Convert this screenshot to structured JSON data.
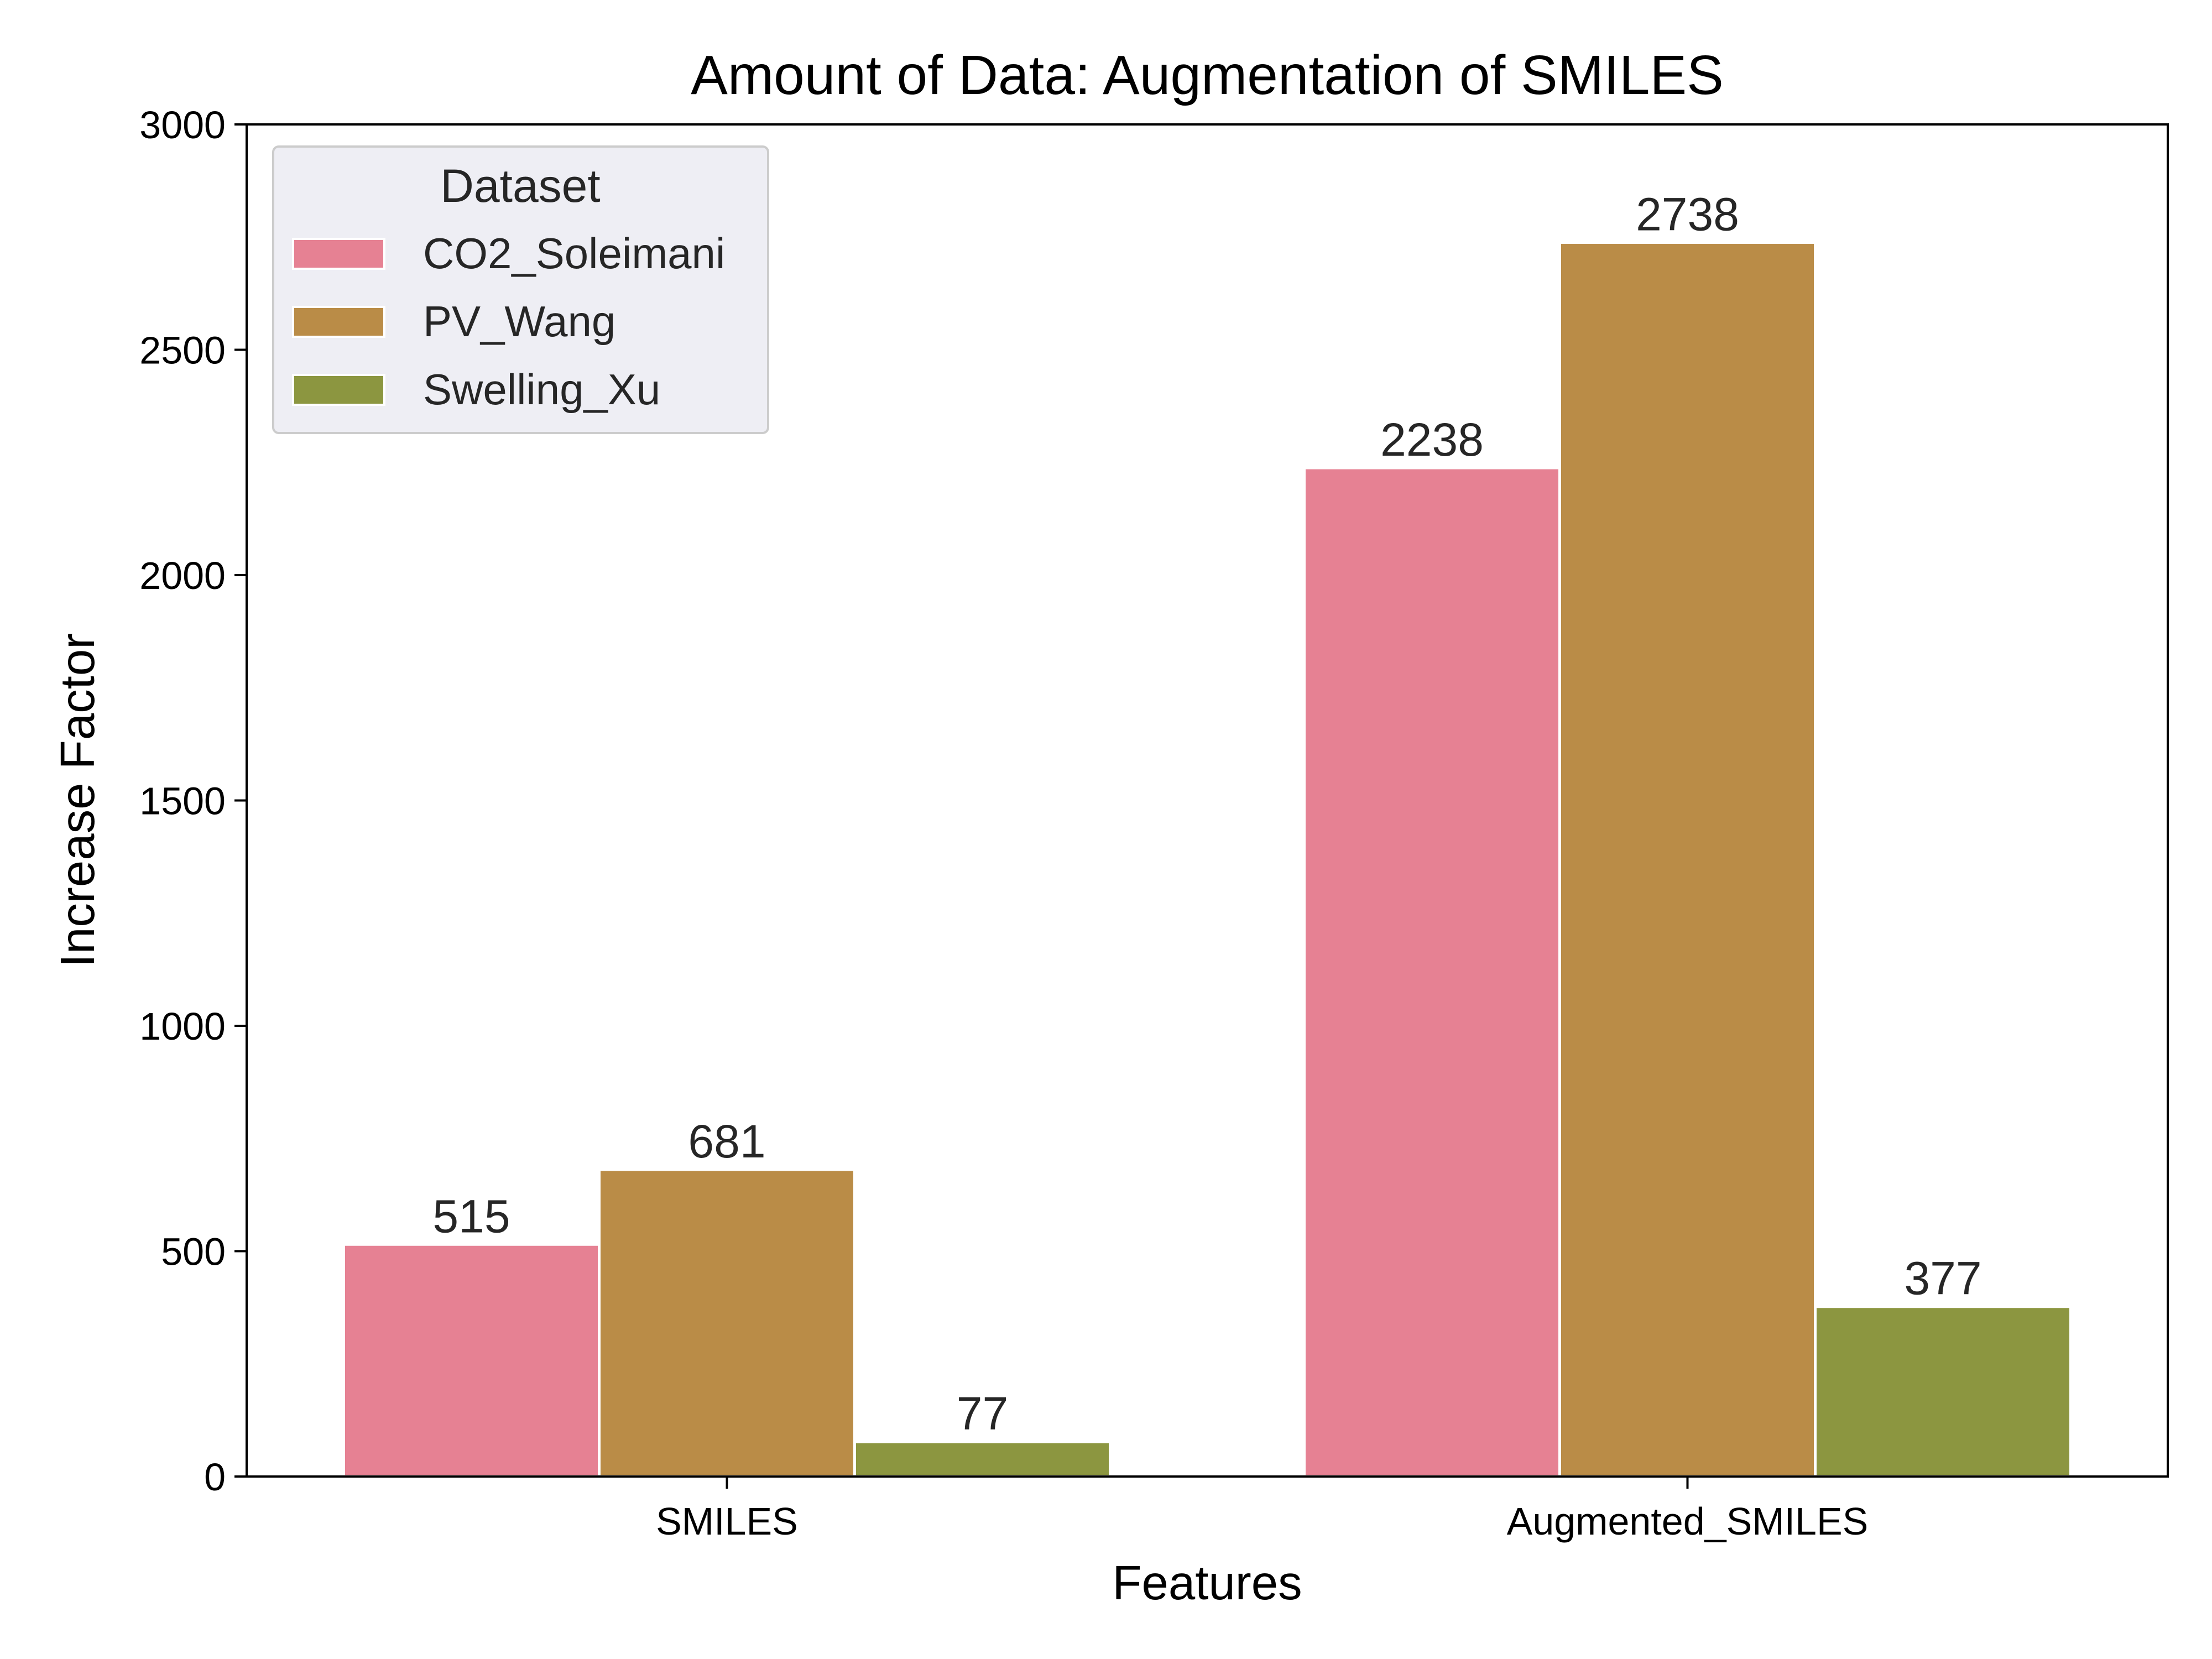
{
  "chart_data": {
    "type": "bar",
    "title": "Amount of Data: Augmentation of SMILES",
    "xlabel": "Features",
    "ylabel": "Increase Factor",
    "categories": [
      "SMILES",
      "Augmented_SMILES"
    ],
    "series": [
      {
        "name": "CO2_Soleimani",
        "values": [
          515,
          2238
        ],
        "color": "#e68193"
      },
      {
        "name": "PV_Wang",
        "values": [
          681,
          2738
        ],
        "color": "#ba8c47"
      },
      {
        "name": "Swelling_Xu",
        "values": [
          77,
          377
        ],
        "color": "#8c9640"
      }
    ],
    "data_labels": [
      [
        "515",
        "2238"
      ],
      [
        "681",
        "2738"
      ],
      [
        "77",
        "377"
      ]
    ],
    "ylim": [
      0,
      3000
    ],
    "yticks": [
      0,
      500,
      1000,
      1500,
      2000,
      2500,
      3000
    ],
    "ytick_labels": [
      "0",
      "500",
      "1000",
      "1500",
      "2000",
      "2500",
      "3000"
    ],
    "grid": false,
    "legend": {
      "title": "Dataset",
      "placement": "top-left",
      "background": "#eeeef4"
    }
  }
}
